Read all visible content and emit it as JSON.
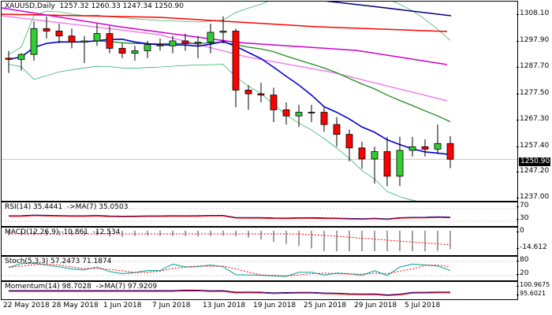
{
  "header": {
    "symbol_line": "XAUUSD,Daily  1257.32 1260.33 1247.34 1250.90"
  },
  "price_axis": {
    "ticks": [
      "1308.10",
      "1297.90",
      "1287.70",
      "1277.50",
      "1267.30",
      "1257.40",
      "1247.20",
      "1237.00"
    ],
    "current_price": "1250.90"
  },
  "indicators": {
    "rsi": {
      "title": "RSI(14) 35.4441  ->MA(7) 35.0503",
      "ticks": [
        "70",
        "30"
      ]
    },
    "macd": {
      "title": "MACD(12,26,9) -10.861  -12.534",
      "ticks": [
        "0",
        "-14.612"
      ]
    },
    "stoch": {
      "title": "Stoch(5,3,3) 57.2473 71.1874",
      "ticks": [
        "80",
        "20"
      ]
    },
    "momentum": {
      "title": "Momentum(14) 98.7028  ->MA(7) 97.9209",
      "ticks": [
        "100.9675",
        "95.6021"
      ]
    }
  },
  "date_axis": {
    "labels": [
      "22 May 2018",
      "28 May 2018",
      "1 Jun 2018",
      "7 Jun 2018",
      "13 Jun 2018",
      "19 Jun 2018",
      "25 Jun 2018",
      "29 Jun 2018",
      "5 Jul 2018"
    ]
  },
  "colors": {
    "bull": "#32CD32",
    "bear": "#FF0000",
    "ma_slow": "#000080",
    "ma_red": "#FF0000",
    "ma_magenta": "#CC00CC",
    "ma_violet": "#EE82EE",
    "ma_green": "#228B22",
    "ma_blue": "#0000CD",
    "band": "#3CB371",
    "rsi_ma": "#FF0000",
    "stoch_main": "#20B2AA",
    "stoch_signal": "#FF0000",
    "momentum_ma": "#FF0000"
  },
  "chart_data": {
    "type": "candlestick",
    "x": [
      "21 May",
      "22 May",
      "23 May",
      "24 May",
      "25 May",
      "28 May",
      "29 May",
      "30 May",
      "31 May",
      "1 Jun",
      "4 Jun",
      "5 Jun",
      "6 Jun",
      "7 Jun",
      "8 Jun",
      "11 Jun",
      "12 Jun",
      "13 Jun",
      "14 Jun",
      "15 Jun",
      "18 Jun",
      "19 Jun",
      "20 Jun",
      "21 Jun",
      "22 Jun",
      "25 Jun",
      "26 Jun",
      "27 Jun",
      "28 Jun",
      "29 Jun",
      "2 Jul",
      "3 Jul",
      "4 Jul",
      "5 Jul",
      "6 Jul",
      "9 Jul"
    ],
    "open": [
      1292.0,
      1291.5,
      1293.5,
      1304.0,
      1303.0,
      1301.0,
      1298.5,
      1299.0,
      1302.0,
      1296.0,
      1294.0,
      1295.0,
      1297.5,
      1297.0,
      1299.0,
      1298.0,
      1298.5,
      1302.5,
      1303.0,
      1279.0,
      1277.5,
      1277.0,
      1271.0,
      1268.5,
      1270.0,
      1270.0,
      1265.0,
      1261.0,
      1255.5,
      1251.0,
      1254.0,
      1244.0,
      1254.5,
      1256.0,
      1255.0,
      1257.3
    ],
    "high": [
      1295.0,
      1294.0,
      1307.0,
      1309.0,
      1306.0,
      1304.0,
      1301.0,
      1306.0,
      1305.0,
      1298.0,
      1297.0,
      1299.0,
      1300.0,
      1301.0,
      1302.0,
      1301.0,
      1306.0,
      1309.0,
      1304.0,
      1281.0,
      1282.0,
      1280.0,
      1274.0,
      1273.0,
      1273.0,
      1272.0,
      1268.0,
      1263.0,
      1258.0,
      1256.0,
      1260.0,
      1260.0,
      1260.0,
      1259.0,
      1265.0,
      1260.3
    ],
    "low": [
      1286.0,
      1287.0,
      1291.0,
      1300.0,
      1298.0,
      1296.0,
      1290.0,
      1297.0,
      1294.0,
      1292.0,
      1291.0,
      1292.0,
      1295.0,
      1294.0,
      1295.0,
      1292.0,
      1294.0,
      1298.0,
      1272.0,
      1271.0,
      1274.0,
      1266.0,
      1265.0,
      1264.0,
      1266.0,
      1262.0,
      1256.0,
      1250.0,
      1247.0,
      1241.0,
      1240.0,
      1240.0,
      1252.0,
      1252.0,
      1253.0,
      1247.3
    ],
    "close": [
      1291.5,
      1293.5,
      1304.0,
      1303.0,
      1301.0,
      1298.5,
      1299.0,
      1302.0,
      1296.0,
      1294.0,
      1295.0,
      1297.5,
      1297.0,
      1299.0,
      1298.0,
      1298.5,
      1302.5,
      1303.0,
      1279.0,
      1277.5,
      1277.0,
      1271.0,
      1268.5,
      1270.0,
      1270.0,
      1265.0,
      1261.0,
      1255.5,
      1251.0,
      1254.0,
      1244.0,
      1254.5,
      1256.0,
      1255.0,
      1257.3,
      1250.9
    ]
  }
}
